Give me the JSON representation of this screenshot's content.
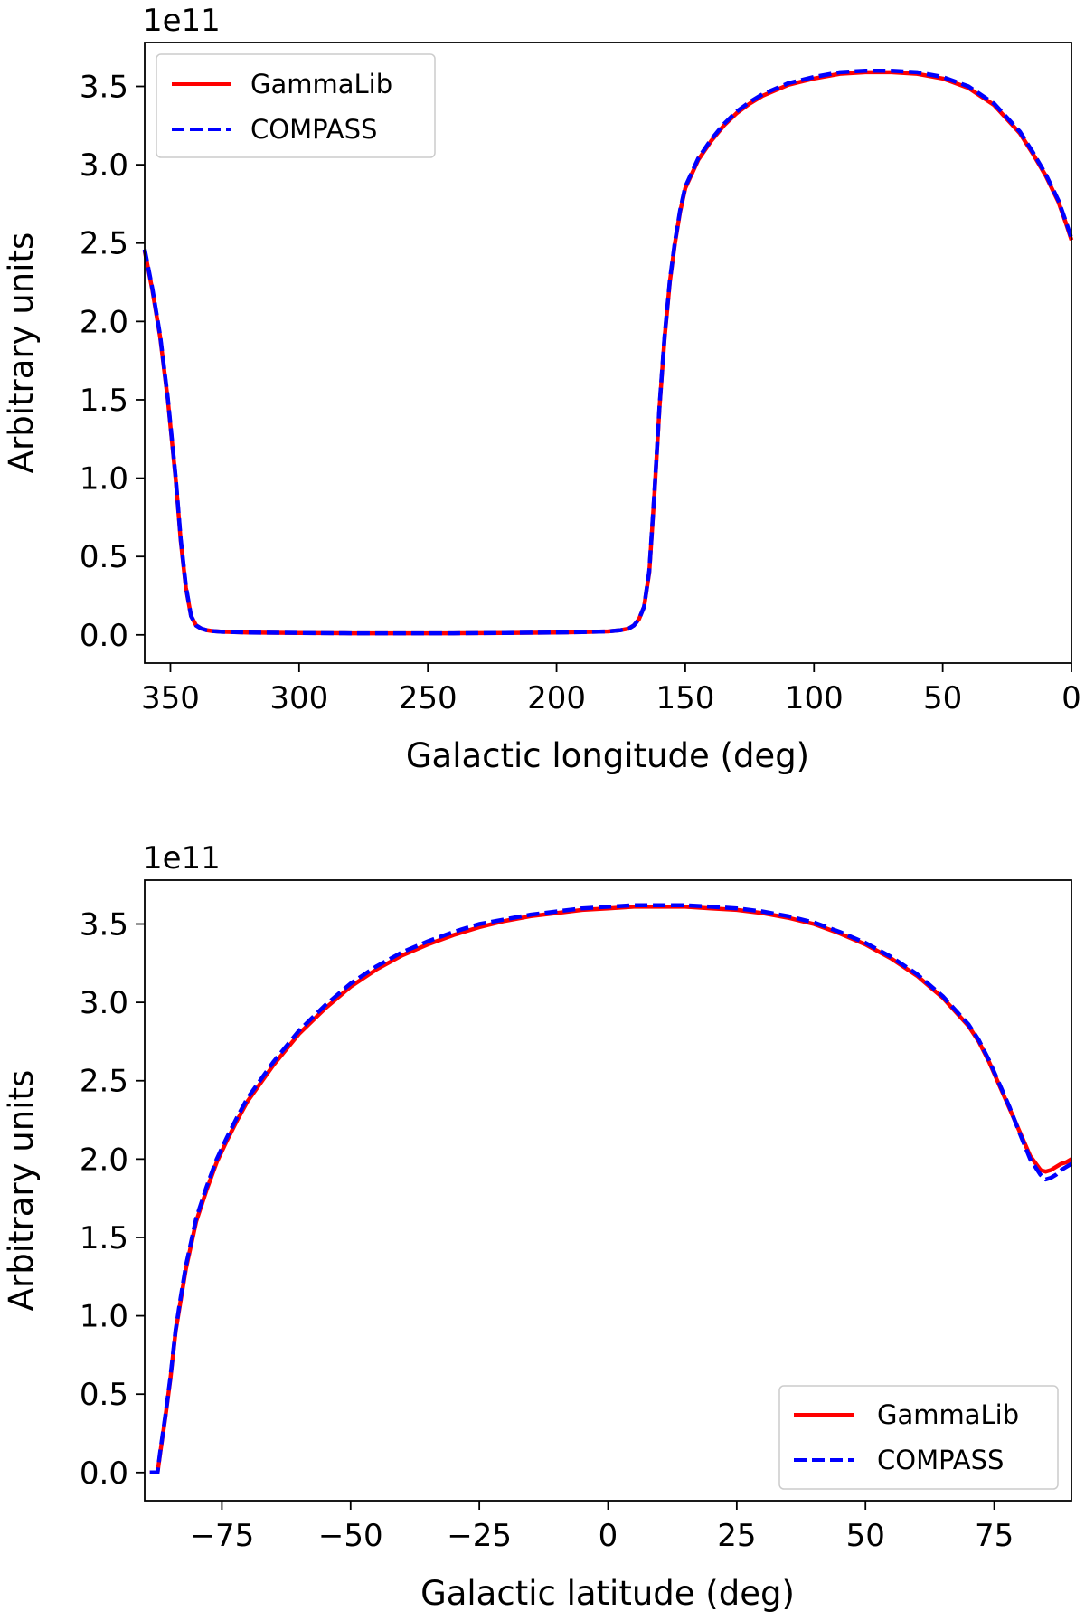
{
  "chart_data": [
    {
      "type": "line",
      "xlabel": "Galactic longitude (deg)",
      "ylabel": "Arbitrary units",
      "offset_text": "1e11",
      "xlim": [
        360,
        0
      ],
      "ylim": [
        -0.18,
        3.78
      ],
      "x_reversed": true,
      "xticks": [
        350,
        300,
        250,
        200,
        150,
        100,
        50,
        0
      ],
      "yticks": [
        0.0,
        0.5,
        1.0,
        1.5,
        2.0,
        2.5,
        3.0,
        3.5
      ],
      "grid": false,
      "legend": "top-left",
      "series": [
        {
          "name": "GammaLib",
          "color": "#ff0000",
          "style": "solid",
          "x": [
            360,
            357,
            354,
            351,
            348,
            346,
            344,
            342,
            340,
            338,
            336,
            334,
            330,
            320,
            300,
            280,
            260,
            240,
            220,
            200,
            190,
            180,
            175,
            172,
            170,
            168,
            166,
            164,
            162,
            160,
            158,
            156,
            154,
            152,
            150,
            145,
            140,
            135,
            130,
            125,
            120,
            110,
            100,
            90,
            80,
            70,
            60,
            50,
            40,
            30,
            20,
            15,
            10,
            5,
            2,
            0
          ],
          "y": [
            2.45,
            2.2,
            1.9,
            1.5,
            1.0,
            0.6,
            0.3,
            0.12,
            0.06,
            0.04,
            0.03,
            0.025,
            0.02,
            0.015,
            0.012,
            0.01,
            0.01,
            0.01,
            0.012,
            0.015,
            0.018,
            0.022,
            0.03,
            0.04,
            0.06,
            0.1,
            0.18,
            0.4,
            0.9,
            1.45,
            1.9,
            2.25,
            2.5,
            2.7,
            2.85,
            3.03,
            3.15,
            3.25,
            3.33,
            3.39,
            3.44,
            3.51,
            3.55,
            3.58,
            3.59,
            3.59,
            3.58,
            3.55,
            3.49,
            3.38,
            3.2,
            3.07,
            2.93,
            2.76,
            2.62,
            2.52
          ]
        },
        {
          "name": "COMPASS",
          "color": "#0000ff",
          "style": "dashed",
          "x": [
            360,
            357,
            354,
            351,
            348,
            346,
            344,
            342,
            340,
            338,
            336,
            334,
            330,
            320,
            300,
            280,
            260,
            240,
            220,
            200,
            190,
            180,
            175,
            172,
            170,
            168,
            166,
            164,
            162,
            160,
            158,
            156,
            154,
            152,
            150,
            145,
            140,
            135,
            130,
            125,
            120,
            110,
            100,
            90,
            80,
            70,
            60,
            50,
            40,
            30,
            20,
            15,
            10,
            5,
            2,
            0
          ],
          "y": [
            2.46,
            2.21,
            1.91,
            1.51,
            1.01,
            0.61,
            0.31,
            0.12,
            0.06,
            0.04,
            0.03,
            0.025,
            0.02,
            0.015,
            0.012,
            0.01,
            0.01,
            0.01,
            0.012,
            0.015,
            0.018,
            0.022,
            0.03,
            0.04,
            0.06,
            0.1,
            0.18,
            0.41,
            0.91,
            1.46,
            1.91,
            2.26,
            2.51,
            2.71,
            2.86,
            3.04,
            3.16,
            3.26,
            3.34,
            3.4,
            3.45,
            3.52,
            3.56,
            3.59,
            3.6,
            3.6,
            3.59,
            3.56,
            3.5,
            3.39,
            3.21,
            3.08,
            2.94,
            2.77,
            2.63,
            2.53
          ]
        }
      ]
    },
    {
      "type": "line",
      "xlabel": "Galactic latitude (deg)",
      "ylabel": "Arbitrary units",
      "offset_text": "1e11",
      "xlim": [
        -90,
        90
      ],
      "ylim": [
        -0.18,
        3.78
      ],
      "x_reversed": false,
      "xticks": [
        -75,
        -50,
        -25,
        0,
        25,
        50,
        75
      ],
      "xtick_labels": [
        "−75",
        "−50",
        "−25",
        "0",
        "25",
        "50",
        "75"
      ],
      "yticks": [
        0.0,
        0.5,
        1.0,
        1.5,
        2.0,
        2.5,
        3.0,
        3.5
      ],
      "grid": false,
      "legend": "bottom-right",
      "series": [
        {
          "name": "GammaLib",
          "color": "#ff0000",
          "style": "solid",
          "x": [
            -89,
            -87.5,
            -87,
            -86,
            -85,
            -84,
            -83,
            -82,
            -81,
            -80,
            -78,
            -76,
            -74,
            -72,
            -70,
            -65,
            -60,
            -55,
            -50,
            -45,
            -40,
            -35,
            -30,
            -25,
            -20,
            -15,
            -10,
            -5,
            0,
            5,
            10,
            15,
            20,
            25,
            30,
            35,
            40,
            45,
            50,
            55,
            60,
            65,
            70,
            72,
            74,
            76,
            78,
            80,
            82,
            84,
            85,
            86,
            87,
            88,
            89,
            90
          ],
          "y": [
            0.0,
            0.0,
            0.12,
            0.35,
            0.6,
            0.9,
            1.1,
            1.3,
            1.45,
            1.6,
            1.8,
            1.98,
            2.12,
            2.25,
            2.37,
            2.6,
            2.8,
            2.96,
            3.1,
            3.21,
            3.3,
            3.37,
            3.43,
            3.48,
            3.52,
            3.55,
            3.57,
            3.59,
            3.6,
            3.61,
            3.61,
            3.61,
            3.6,
            3.59,
            3.57,
            3.54,
            3.5,
            3.44,
            3.37,
            3.28,
            3.17,
            3.03,
            2.85,
            2.75,
            2.62,
            2.47,
            2.32,
            2.17,
            2.02,
            1.93,
            1.92,
            1.93,
            1.95,
            1.97,
            1.98,
            2.0
          ]
        },
        {
          "name": "COMPASS",
          "color": "#0000ff",
          "style": "dashed",
          "x": [
            -89,
            -87.5,
            -87,
            -86,
            -85,
            -84,
            -83,
            -82,
            -81,
            -80,
            -78,
            -76,
            -74,
            -72,
            -70,
            -65,
            -60,
            -55,
            -50,
            -45,
            -40,
            -35,
            -30,
            -25,
            -20,
            -15,
            -10,
            -5,
            0,
            5,
            10,
            15,
            20,
            25,
            30,
            35,
            40,
            45,
            50,
            55,
            60,
            65,
            70,
            72,
            74,
            76,
            78,
            80,
            82,
            84,
            85,
            86,
            87,
            88,
            89,
            90
          ],
          "y": [
            0.0,
            0.0,
            0.13,
            0.36,
            0.61,
            0.91,
            1.12,
            1.32,
            1.47,
            1.62,
            1.82,
            2.0,
            2.14,
            2.27,
            2.39,
            2.62,
            2.82,
            2.98,
            3.12,
            3.23,
            3.32,
            3.39,
            3.45,
            3.5,
            3.53,
            3.56,
            3.58,
            3.6,
            3.61,
            3.62,
            3.62,
            3.62,
            3.61,
            3.6,
            3.58,
            3.55,
            3.51,
            3.45,
            3.38,
            3.29,
            3.18,
            3.04,
            2.86,
            2.76,
            2.63,
            2.48,
            2.33,
            2.16,
            2.0,
            1.9,
            1.87,
            1.88,
            1.9,
            1.93,
            1.95,
            1.97
          ]
        }
      ]
    }
  ]
}
